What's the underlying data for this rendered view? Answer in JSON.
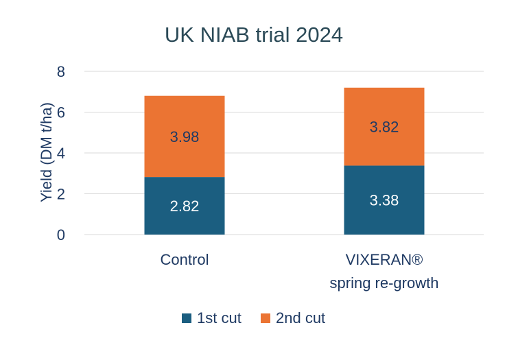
{
  "chart_data": {
    "type": "bar",
    "stacked": true,
    "title": "UK NIAB trial 2024",
    "ylabel": "Yield (DM t/ha)",
    "xlabel": "",
    "ylim": [
      0,
      8
    ],
    "yticks": [
      0,
      2,
      4,
      6,
      8
    ],
    "grid": true,
    "legend_position": "bottom",
    "categories": [
      [
        "Control"
      ],
      [
        "VIXERAN®",
        "spring re-growth"
      ]
    ],
    "series": [
      {
        "name": "1st cut",
        "values": [
          2.82,
          3.38
        ],
        "labels": [
          "2.82",
          "3.38"
        ],
        "color": "#1b5e80",
        "label_color": "#ffffff"
      },
      {
        "name": "2nd cut",
        "values": [
          3.98,
          3.82
        ],
        "labels": [
          "3.98",
          "3.82"
        ],
        "color": "#eb7433",
        "label_color": "#1f3a63"
      }
    ]
  }
}
